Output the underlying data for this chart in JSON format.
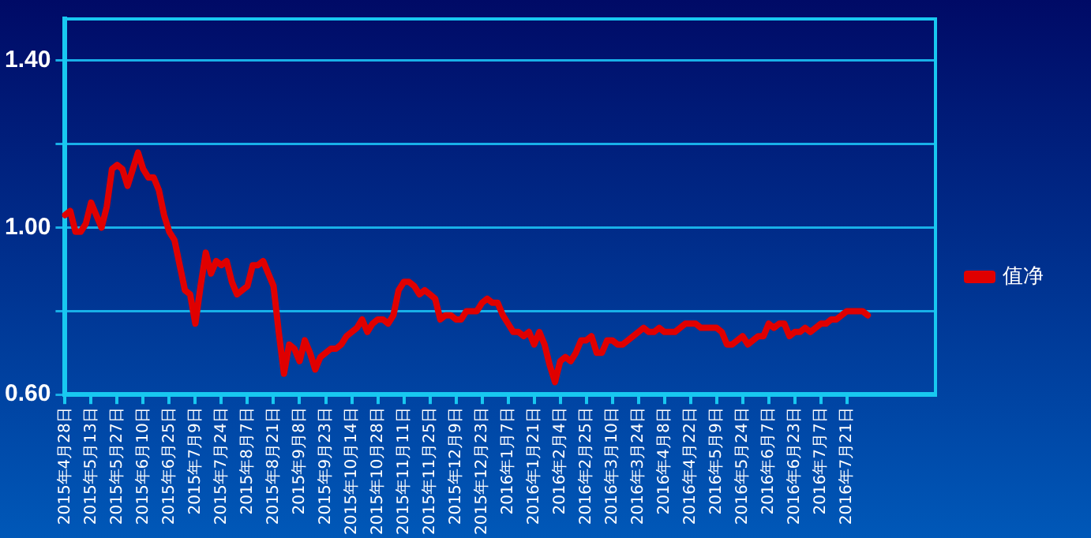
{
  "chart_data": {
    "type": "line",
    "categories": [
      "2015年4月28日",
      null,
      null,
      null,
      null,
      "2015年5月13日",
      null,
      null,
      null,
      null,
      "2015年5月27日",
      null,
      null,
      null,
      null,
      "2015年6月10日",
      null,
      null,
      null,
      null,
      "2015年6月25日",
      null,
      null,
      null,
      null,
      "2015年7月9日",
      null,
      null,
      null,
      null,
      "2015年7月24日",
      null,
      null,
      null,
      null,
      "2015年8月7日",
      null,
      null,
      null,
      null,
      "2015年8月21日",
      null,
      null,
      null,
      null,
      "2015年9月8日",
      null,
      null,
      null,
      null,
      "2015年9月23日",
      null,
      null,
      null,
      null,
      "2015年10月14日",
      null,
      null,
      null,
      null,
      "2015年10月28日",
      null,
      null,
      null,
      null,
      "2015年11月11日",
      null,
      null,
      null,
      null,
      "2015年11月25日",
      null,
      null,
      null,
      null,
      "2015年12月9日",
      null,
      null,
      null,
      null,
      "2015年12月23日",
      null,
      null,
      null,
      null,
      "2016年1月7日",
      null,
      null,
      null,
      null,
      "2016年1月21日",
      null,
      null,
      null,
      null,
      "2016年2月4日",
      null,
      null,
      null,
      null,
      "2016年2月25日",
      null,
      null,
      null,
      null,
      "2016年3月10日",
      null,
      null,
      null,
      null,
      "2016年3月24日",
      null,
      null,
      null,
      null,
      "2016年4月8日",
      null,
      null,
      null,
      null,
      "2016年4月22日",
      null,
      null,
      null,
      null,
      "2016年5月9日",
      null,
      null,
      null,
      null,
      "2016年5月24日",
      null,
      null,
      null,
      null,
      "2016年6月7日",
      null,
      null,
      null,
      null,
      "2016年6月23日",
      null,
      null,
      null,
      null,
      "2016年7月7日",
      null,
      null,
      null,
      null,
      "2016年7月21日",
      null,
      null,
      null,
      null,
      null,
      null,
      null,
      null,
      null,
      null,
      null,
      null,
      null,
      null,
      null,
      null,
      null
    ],
    "series": [
      {
        "name": "值净",
        "color": "#e00000",
        "values": [
          1.03,
          1.04,
          0.99,
          0.99,
          1.01,
          1.06,
          1.03,
          1.0,
          1.05,
          1.14,
          1.15,
          1.14,
          1.1,
          1.14,
          1.18,
          1.14,
          1.12,
          1.12,
          1.09,
          1.03,
          0.99,
          0.97,
          0.91,
          0.85,
          0.84,
          0.77,
          0.86,
          0.94,
          0.89,
          0.92,
          0.91,
          0.92,
          0.87,
          0.84,
          0.85,
          0.86,
          0.91,
          0.91,
          0.92,
          0.89,
          0.86,
          0.75,
          0.65,
          0.72,
          0.71,
          0.68,
          0.73,
          0.7,
          0.66,
          0.69,
          0.7,
          0.71,
          0.71,
          0.72,
          0.74,
          0.75,
          0.76,
          0.78,
          0.75,
          0.77,
          0.78,
          0.78,
          0.77,
          0.79,
          0.85,
          0.87,
          0.87,
          0.86,
          0.84,
          0.85,
          0.84,
          0.83,
          0.78,
          0.79,
          0.79,
          0.78,
          0.78,
          0.8,
          0.8,
          0.8,
          0.82,
          0.83,
          0.82,
          0.82,
          0.79,
          0.77,
          0.75,
          0.75,
          0.74,
          0.75,
          0.72,
          0.75,
          0.72,
          0.67,
          0.63,
          0.68,
          0.69,
          0.68,
          0.7,
          0.73,
          0.73,
          0.74,
          0.7,
          0.7,
          0.73,
          0.73,
          0.72,
          0.72,
          0.73,
          0.74,
          0.75,
          0.76,
          0.75,
          0.75,
          0.76,
          0.75,
          0.75,
          0.75,
          0.76,
          0.77,
          0.77,
          0.77,
          0.76,
          0.76,
          0.76,
          0.76,
          0.75,
          0.72,
          0.72,
          0.73,
          0.74,
          0.72,
          0.73,
          0.74,
          0.74,
          0.77,
          0.76,
          0.77,
          0.77,
          0.74,
          0.75,
          0.75,
          0.76,
          0.75,
          0.76,
          0.77,
          0.77,
          0.78,
          0.78,
          0.79,
          0.8,
          0.8,
          0.8,
          0.8,
          0.79,
          null,
          null,
          null,
          null,
          null,
          null,
          null,
          null,
          null,
          null,
          null,
          null,
          null
        ]
      }
    ],
    "ylim": [
      0.6,
      1.5
    ],
    "yticks": [
      {
        "value": 0.6,
        "label": "0.60"
      },
      {
        "value": 0.8,
        "label": null
      },
      {
        "value": 1.0,
        "label": "1.00"
      },
      {
        "value": 1.2,
        "label": null
      },
      {
        "value": 1.4,
        "label": "1.40"
      }
    ],
    "grid": "y",
    "legend": "right",
    "marker": "none"
  }
}
